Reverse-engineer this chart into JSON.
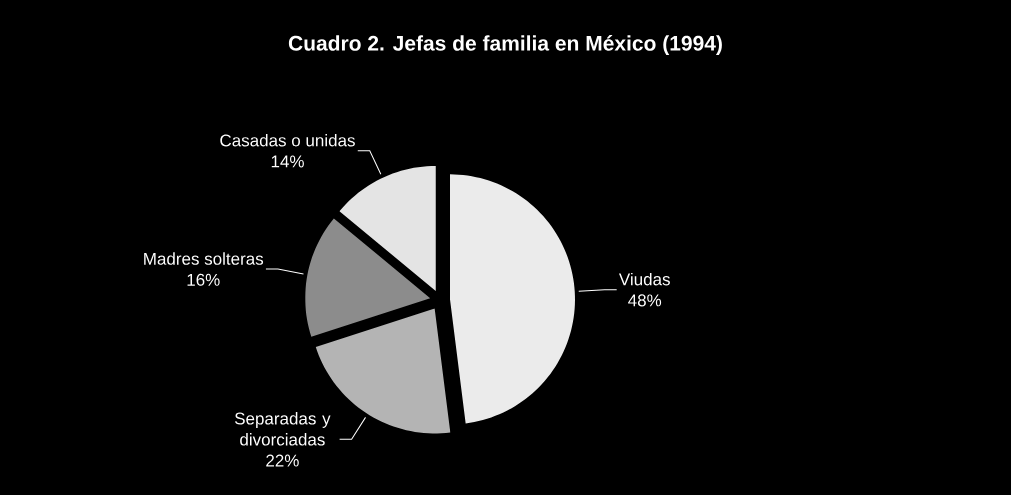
{
  "chart_data": {
    "type": "pie",
    "title": "Cuadro 2. Jefas de familia en México (1994)",
    "categories": [
      "Viudas",
      "Separadas y divorciadas",
      "Madres solteras",
      "Casadas o unidas"
    ],
    "values": [
      48,
      22,
      16,
      14
    ],
    "value_labels": [
      "48%",
      "22%",
      "16%",
      "14%"
    ],
    "colors": [
      "#ebebeb",
      "#b4b4b4",
      "#8c8c8c",
      "#e4e4e4"
    ]
  }
}
